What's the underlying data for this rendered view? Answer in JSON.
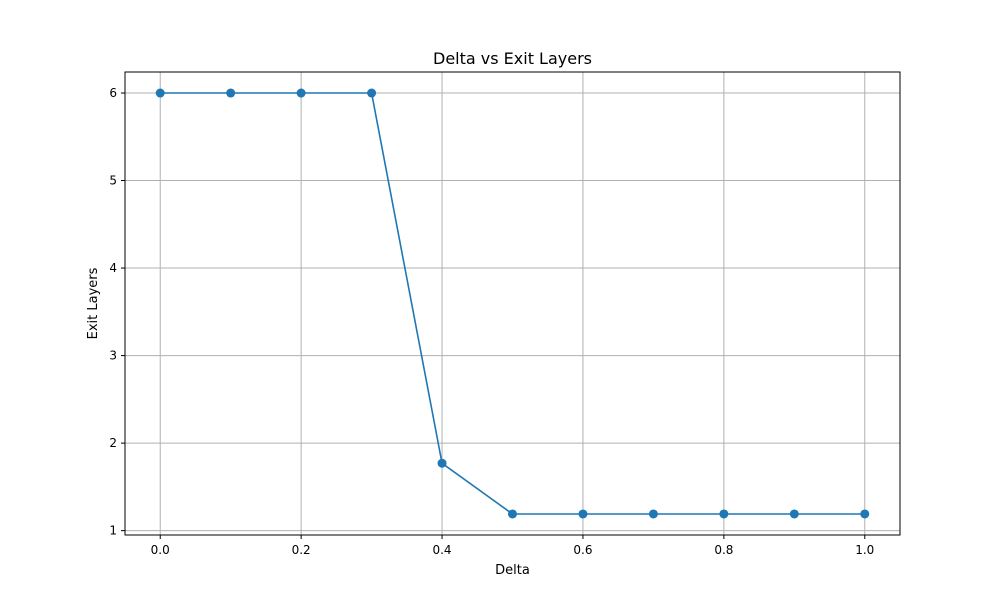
{
  "chart_data": {
    "type": "line",
    "title": "Delta vs Exit Layers",
    "xlabel": "Delta",
    "ylabel": "Exit Layers",
    "x": [
      0.0,
      0.1,
      0.2,
      0.3,
      0.4,
      0.5,
      0.6,
      0.7,
      0.8,
      0.9,
      1.0
    ],
    "series": [
      {
        "values": [
          6,
          6,
          6,
          6,
          1.77,
          1.19,
          1.19,
          1.19,
          1.19,
          1.19,
          1.19
        ]
      }
    ],
    "xlim": [
      -0.05,
      1.05
    ],
    "ylim": [
      0.95,
      6.24
    ],
    "xticks": [
      0.0,
      0.2,
      0.4,
      0.6,
      0.8,
      1.0
    ],
    "xtick_labels": [
      "0.0",
      "0.2",
      "0.4",
      "0.6",
      "0.8",
      "1.0"
    ],
    "yticks": [
      1,
      2,
      3,
      4,
      5,
      6
    ],
    "ytick_labels": [
      "1",
      "2",
      "3",
      "4",
      "5",
      "6"
    ],
    "grid": true,
    "marker": "circle",
    "color": "#1f77b4"
  }
}
